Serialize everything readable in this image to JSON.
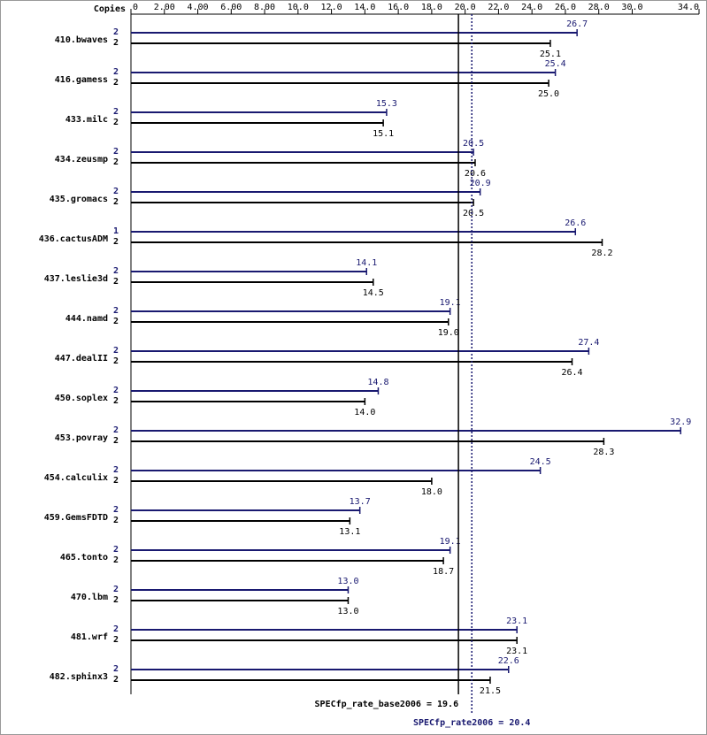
{
  "chart_data": {
    "type": "bar",
    "orientation": "horizontal",
    "copies_label": "Copies",
    "categories": [
      "410.bwaves",
      "416.gamess",
      "433.milc",
      "434.zeusmp",
      "435.gromacs",
      "436.cactusADM",
      "437.leslie3d",
      "444.namd",
      "447.dealII",
      "450.soplex",
      "453.povray",
      "454.calculix",
      "459.GemsFDTD",
      "465.tonto",
      "470.lbm",
      "481.wrf",
      "482.sphinx3"
    ],
    "series": [
      {
        "color": "#191970",
        "values": [
          26.7,
          25.4,
          15.3,
          20.5,
          20.9,
          26.6,
          14.1,
          19.1,
          27.4,
          14.8,
          32.9,
          24.5,
          13.7,
          19.1,
          13.0,
          23.1,
          22.6
        ],
        "value_labels": [
          "26.7",
          "25.4",
          "15.3",
          "20.5",
          "20.9",
          "26.6",
          "14.1",
          "19.1",
          "27.4",
          "14.8",
          "32.9",
          "24.5",
          "13.7",
          "19.1",
          "13.0",
          "23.1",
          "22.6"
        ],
        "copies": [
          "2",
          "2",
          "2",
          "2",
          "2",
          "1",
          "2",
          "2",
          "2",
          "2",
          "2",
          "2",
          "2",
          "2",
          "2",
          "2",
          "2"
        ]
      },
      {
        "color": "#000000",
        "values": [
          25.1,
          25.0,
          15.1,
          20.6,
          20.5,
          28.2,
          14.5,
          19.0,
          26.4,
          14.0,
          28.3,
          18.0,
          13.1,
          18.7,
          13.0,
          23.1,
          21.5
        ],
        "value_labels": [
          "25.1",
          "25.0",
          "15.1",
          "20.6",
          "20.5",
          "28.2",
          "14.5",
          "19.0",
          "26.4",
          "14.0",
          "28.3",
          "18.0",
          "13.1",
          "18.7",
          "13.0",
          "23.1",
          "21.5"
        ],
        "copies": [
          "2",
          "2",
          "2",
          "2",
          "2",
          "2",
          "2",
          "2",
          "2",
          "2",
          "2",
          "2",
          "2",
          "2",
          "2",
          "2",
          "2"
        ]
      }
    ],
    "xlim": [
      0,
      34
    ],
    "xticks": [
      0,
      {
        "value": 2,
        "label": "2.00"
      },
      {
        "value": 4,
        "label": "4.00"
      },
      {
        "value": 6,
        "label": "6.00"
      },
      {
        "value": 8,
        "label": "8.00"
      },
      {
        "value": 10,
        "label": "10.0"
      },
      {
        "value": 12,
        "label": "12.0"
      },
      {
        "value": 14,
        "label": "14.0"
      },
      {
        "value": 16,
        "label": "16.0"
      },
      {
        "value": 18,
        "label": "18.0"
      },
      {
        "value": 20,
        "label": "20.0"
      },
      {
        "value": 22,
        "label": "22.0"
      },
      {
        "value": 24,
        "label": "24.0"
      },
      {
        "value": 26,
        "label": "26.0"
      },
      {
        "value": 28,
        "label": "28.0"
      },
      {
        "value": 30,
        "label": "30.0"
      },
      {
        "value": 34,
        "label": "34.0"
      }
    ],
    "reference_lines": [
      {
        "value": 19.6,
        "label": "SPECfp_rate_base2006 = 19.6",
        "color": "#000000"
      },
      {
        "value": 20.4,
        "label": "SPECfp_rate2006 = 20.4",
        "color": "#191970"
      }
    ]
  }
}
